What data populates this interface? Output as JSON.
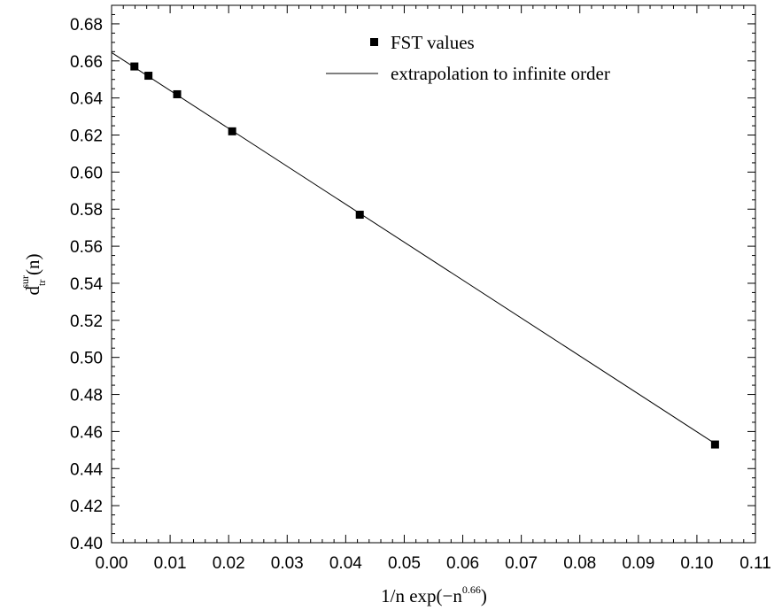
{
  "chart_data": {
    "type": "scatter",
    "xlim": [
      0.0,
      0.11
    ],
    "ylim": [
      0.4,
      0.69
    ],
    "x_ticks": [
      "0.00",
      "0.01",
      "0.02",
      "0.03",
      "0.04",
      "0.05",
      "0.06",
      "0.07",
      "0.08",
      "0.09",
      "0.10",
      "0.11"
    ],
    "y_ticks": [
      "0.40",
      "0.42",
      "0.44",
      "0.46",
      "0.48",
      "0.50",
      "0.52",
      "0.54",
      "0.56",
      "0.58",
      "0.60",
      "0.62",
      "0.64",
      "0.66",
      "0.68"
    ],
    "xlabel": {
      "main": "1/n exp(−n",
      "sup": "0.66",
      "close": ")"
    },
    "ylabel": {
      "base": "d",
      "sub": "tr",
      "sup": "sur",
      "arg": "(n)"
    },
    "legend_position": "top-right",
    "series": [
      {
        "name": "FST values",
        "marker": "square",
        "x": [
          0.0039,
          0.0063,
          0.0112,
          0.0206,
          0.0424,
          0.1031
        ],
        "y": [
          0.657,
          0.652,
          0.642,
          0.622,
          0.577,
          0.453
        ]
      },
      {
        "name": "extrapolation to infinite order",
        "marker": "line",
        "x": [
          0.0,
          0.1031
        ],
        "y": [
          0.6645,
          0.4535
        ]
      }
    ],
    "grid": false
  }
}
